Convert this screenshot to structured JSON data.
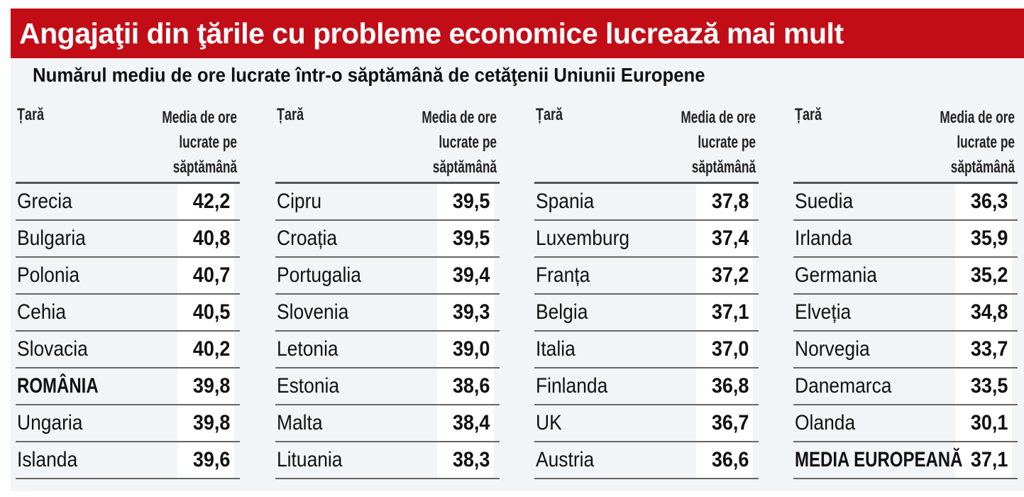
{
  "title": "Angajaţii din ţările cu probleme economice lucrează mai mult",
  "subtitle": "Numărul mediu de ore lucrate într-o săptămână de cetăţenii Uniunii Europene",
  "colors": {
    "banner": "#c20d17",
    "background": "#f2f5f7"
  },
  "chart_data": {
    "type": "table",
    "title": "Numărul mediu de ore lucrate într-o săptămână de cetăţenii Uniunii Europene",
    "columns": [
      "Țară",
      "Media de ore lucrate pe săptămână"
    ],
    "groups": [
      {
        "header_country": "Țară",
        "header_value": "Media de ore lucrate pe săptămână",
        "rows": [
          {
            "country": "Grecia",
            "value": "42,2"
          },
          {
            "country": "Bulgaria",
            "value": "40,8"
          },
          {
            "country": "Polonia",
            "value": "40,7"
          },
          {
            "country": "Cehia",
            "value": "40,5"
          },
          {
            "country": "Slovacia",
            "value": "40,2"
          },
          {
            "country": "ROMÂNIA",
            "value": "39,8",
            "bold": true
          },
          {
            "country": "Ungaria",
            "value": "39,8"
          },
          {
            "country": "Islanda",
            "value": "39,6"
          }
        ]
      },
      {
        "header_country": "Țară",
        "header_value": "Media de ore lucrate pe săptămână",
        "rows": [
          {
            "country": "Cipru",
            "value": "39,5"
          },
          {
            "country": "Croația",
            "value": "39,5"
          },
          {
            "country": "Portugalia",
            "value": "39,4"
          },
          {
            "country": "Slovenia",
            "value": "39,3"
          },
          {
            "country": "Letonia",
            "value": "39,0"
          },
          {
            "country": "Estonia",
            "value": "38,6"
          },
          {
            "country": "Malta",
            "value": "38,4"
          },
          {
            "country": "Lituania",
            "value": "38,3"
          }
        ]
      },
      {
        "header_country": "Țară",
        "header_value": "Media de ore lucrate pe săptămână",
        "rows": [
          {
            "country": "Spania",
            "value": "37,8"
          },
          {
            "country": "Luxemburg",
            "value": "37,4"
          },
          {
            "country": "Franța",
            "value": "37,2"
          },
          {
            "country": "Belgia",
            "value": "37,1"
          },
          {
            "country": "Italia",
            "value": "37,0"
          },
          {
            "country": "Finlanda",
            "value": "36,8"
          },
          {
            "country": "UK",
            "value": "36,7"
          },
          {
            "country": "Austria",
            "value": "36,6"
          }
        ]
      },
      {
        "header_country": "Țară",
        "header_value": "Media de ore lucrate pe săptămână",
        "rows": [
          {
            "country": "Suedia",
            "value": "36,3"
          },
          {
            "country": "Irlanda",
            "value": "35,9"
          },
          {
            "country": "Germania",
            "value": "35,2"
          },
          {
            "country": "Elveția",
            "value": "34,8"
          },
          {
            "country": "Norvegia",
            "value": "33,7"
          },
          {
            "country": "Danemarca",
            "value": "33,5"
          },
          {
            "country": "Olanda",
            "value": "30,1"
          },
          {
            "country": "MEDIA EUROPEANĂ",
            "value": "37,1",
            "bold": true
          }
        ]
      }
    ]
  }
}
